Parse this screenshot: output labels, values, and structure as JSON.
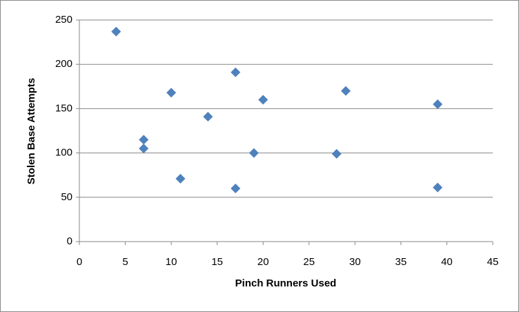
{
  "chart_data": {
    "type": "scatter",
    "x_label": "Pinch Runners Used",
    "y_label": "Stolen Base Attempts",
    "series": [
      {
        "color": "#4f81bd",
        "x": [
          4,
          7,
          7,
          10,
          11,
          14,
          17,
          17,
          19,
          20,
          28,
          29,
          39,
          39
        ],
        "values": [
          237,
          115,
          105,
          168,
          71,
          141,
          191,
          60,
          100,
          160,
          99,
          170,
          155,
          61
        ]
      }
    ],
    "xlim": [
      0,
      45
    ],
    "xticks": [
      0,
      5,
      10,
      15,
      20,
      25,
      30,
      35,
      40,
      45
    ],
    "ylim": [
      0,
      250
    ],
    "yticks": [
      0,
      50,
      100,
      150,
      200,
      250
    ],
    "grid": true
  }
}
